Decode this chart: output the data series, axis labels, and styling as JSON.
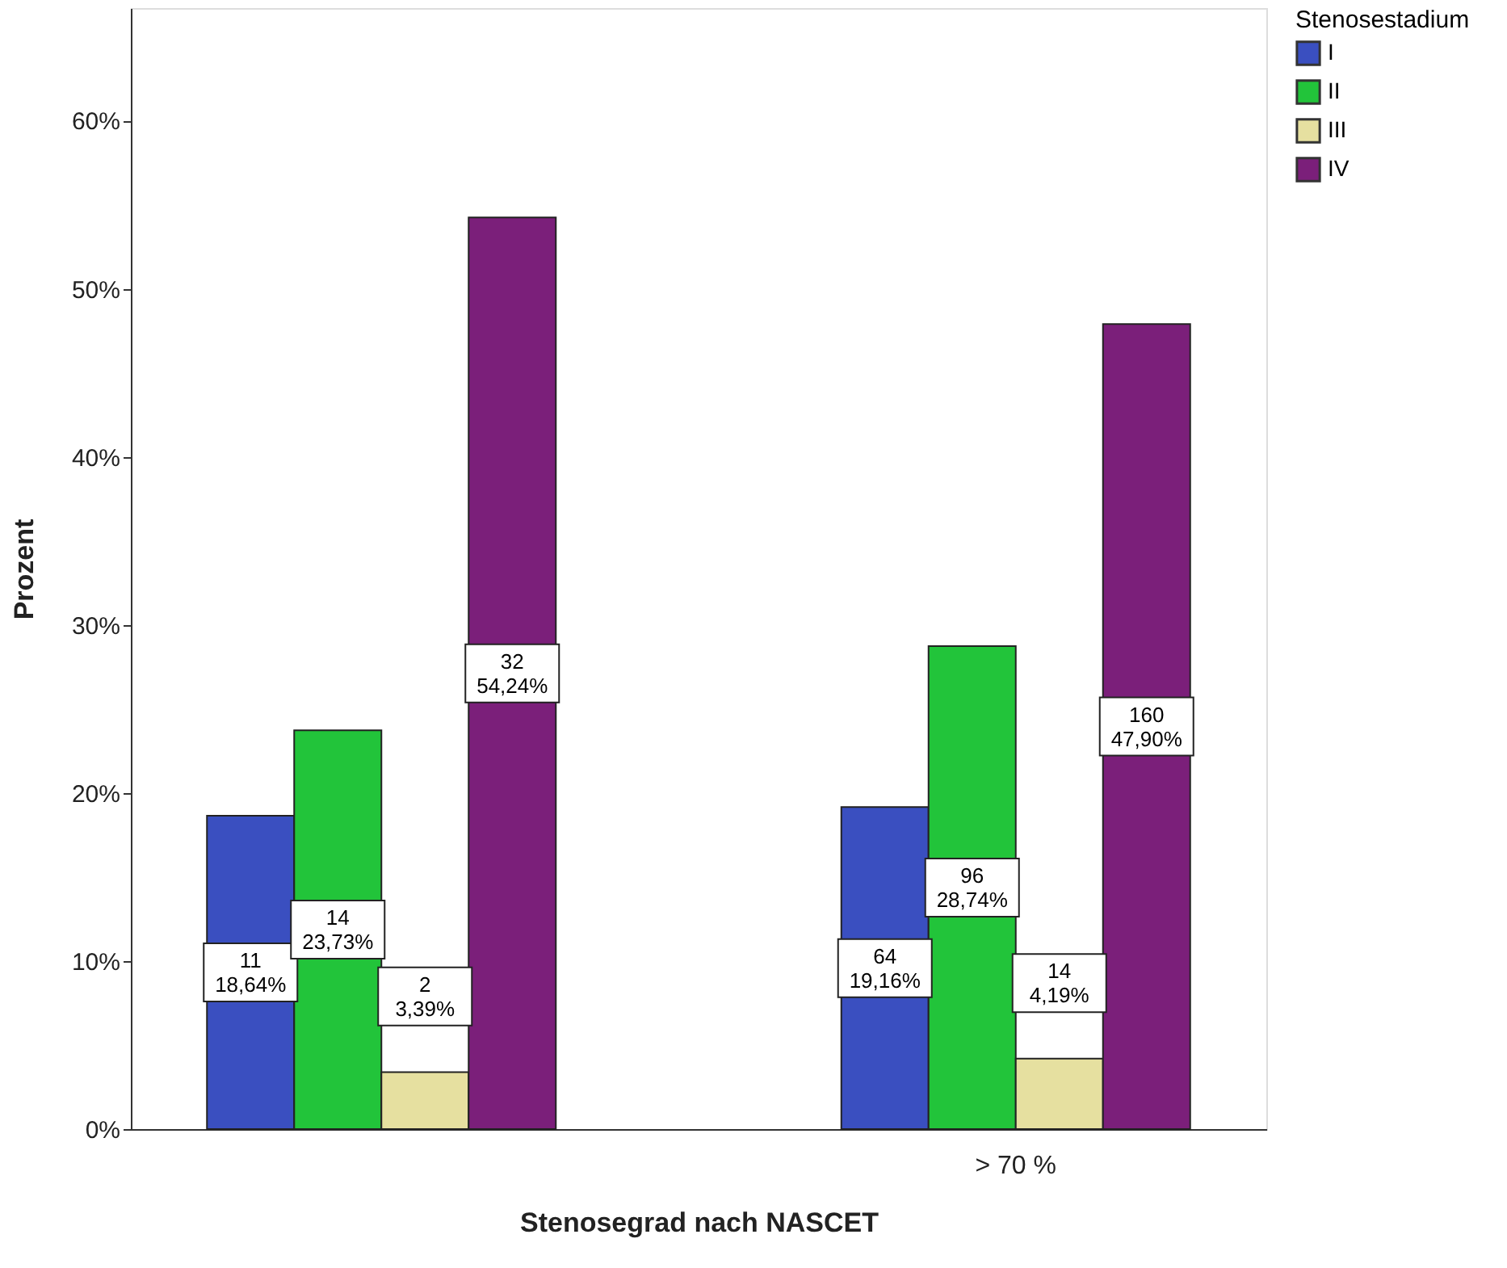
{
  "chart_data": {
    "type": "bar",
    "xlabel": "Stenosegrad nach NASCET",
    "ylabel": "Prozent",
    "legend_title": "Stenosestadium",
    "legend": "top right",
    "grid": false,
    "categories": [
      null,
      "> 70 %"
    ],
    "ylim": [
      0,
      66.7
    ],
    "yticks": [
      {
        "value": 0,
        "label": "0%"
      },
      {
        "value": 10,
        "label": "10%"
      },
      {
        "value": 20,
        "label": "20%"
      },
      {
        "value": 30,
        "label": "30%"
      },
      {
        "value": 40,
        "label": "40%"
      },
      {
        "value": 50,
        "label": "50%"
      },
      {
        "value": 60,
        "label": "60%"
      }
    ],
    "series": [
      {
        "name": "I",
        "color": "#3a4fc0",
        "values": [
          18.64,
          19.16
        ],
        "value_labels": [
          "11\n18,64%",
          "64\n19,16%"
        ]
      },
      {
        "name": "II",
        "color": "#22c43a",
        "values": [
          23.73,
          28.74
        ],
        "value_labels": [
          "14\n23,73%",
          "96\n28,74%"
        ]
      },
      {
        "name": "III",
        "color": "#e6e0a0",
        "values": [
          3.39,
          4.19
        ],
        "value_labels": [
          "2\n3,39%",
          "14\n4,19%"
        ]
      },
      {
        "name": "IV",
        "color": "#7b1f7a",
        "values": [
          54.24,
          47.9
        ],
        "value_labels": [
          "32\n54,24%",
          "160\n47,90%"
        ]
      }
    ]
  }
}
